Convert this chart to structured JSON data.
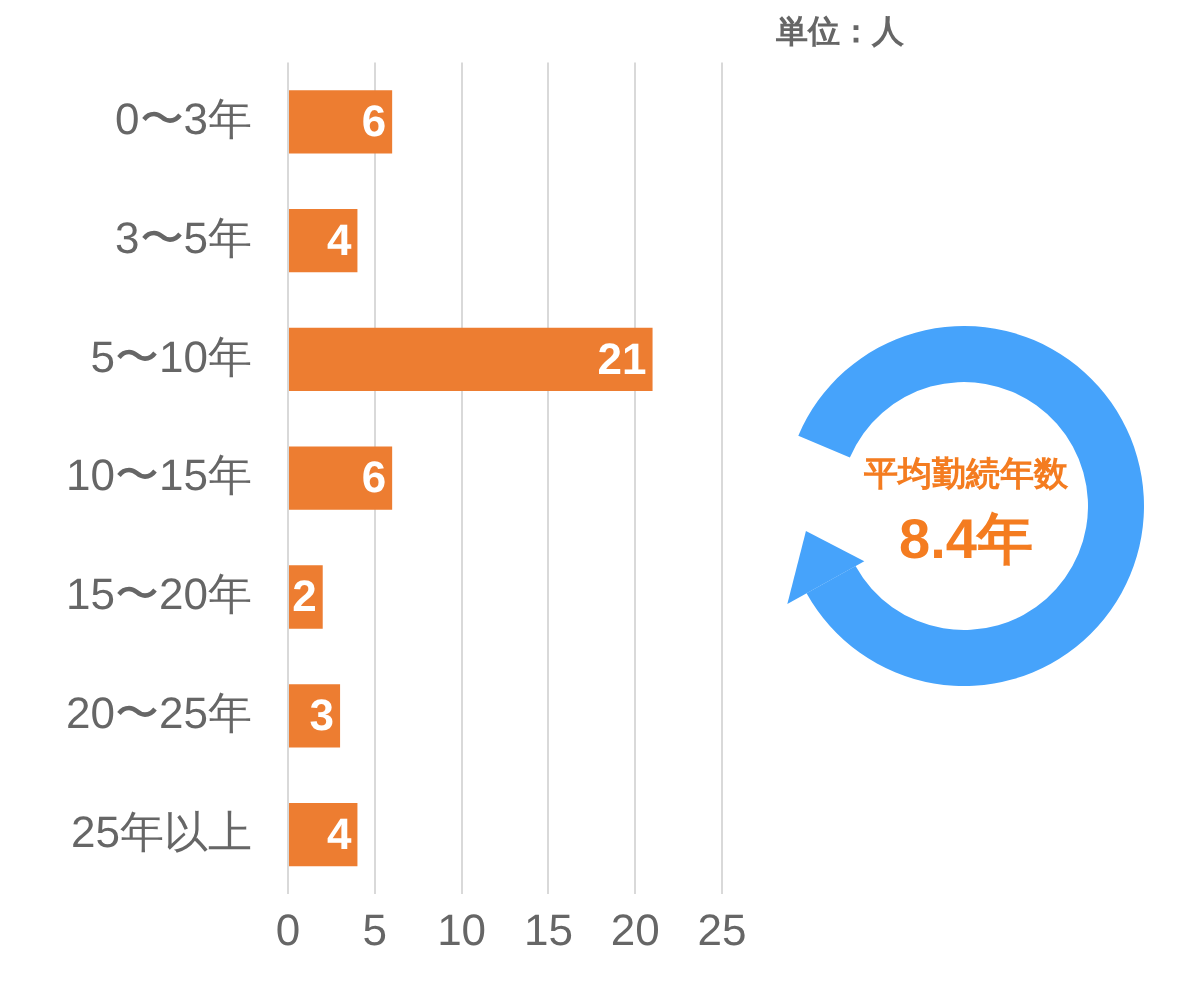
{
  "chart_data": {
    "type": "bar",
    "orientation": "horizontal",
    "categories": [
      "0〜3年",
      "3〜5年",
      "5〜10年",
      "10〜15年",
      "15〜20年",
      "20〜25年",
      "25年以上"
    ],
    "values": [
      6,
      4,
      21,
      6,
      2,
      3,
      4
    ],
    "color": "#ed7d31",
    "xlim": [
      0,
      25
    ],
    "xticks": [
      0,
      5,
      10,
      15,
      20,
      25
    ],
    "grid": "x",
    "data_labels": true,
    "annotations": [
      "単位：人",
      "平均勤続年数",
      "8.4年"
    ]
  }
}
